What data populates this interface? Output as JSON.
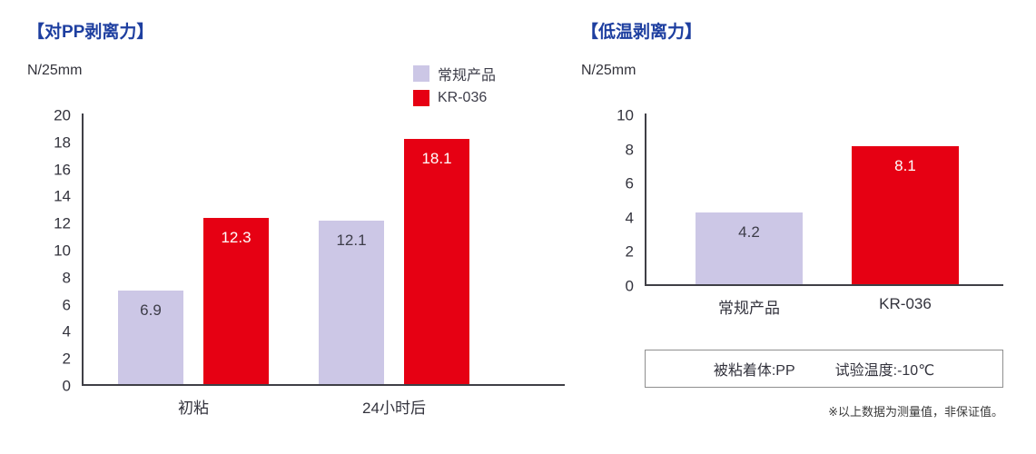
{
  "page": {
    "footnote": "※以上数据为测量值，非保证值。"
  },
  "colors": {
    "title_blue": "#1e3fa0",
    "regular_product_bar": "#ccc7e6",
    "kr036_bar": "#e60013",
    "axis": "#3f3f46"
  },
  "chart_data": [
    {
      "type": "bar",
      "title": "【对PP剥离力】",
      "ylabel": "N/25mm",
      "xlabel": "",
      "ylim": [
        0,
        20
      ],
      "yticks": [
        0,
        2,
        4,
        6,
        8,
        10,
        12,
        14,
        16,
        18,
        20
      ],
      "grid": false,
      "legend": true,
      "legend_position": "top-right",
      "categories": [
        "初粘",
        "24小时后"
      ],
      "series": [
        {
          "name": "常规产品",
          "color": "#ccc7e6",
          "label_color": "#3d3d49",
          "values": [
            6.9,
            12.1
          ]
        },
        {
          "name": "KR-036",
          "color": "#e60013",
          "label_color": "#ffffff",
          "values": [
            12.3,
            18.1
          ]
        }
      ]
    },
    {
      "type": "bar",
      "title": "【低温剥离力】",
      "ylabel": "N/25mm",
      "xlabel": "",
      "ylim": [
        0,
        10
      ],
      "yticks": [
        0,
        2,
        4,
        6,
        8,
        10
      ],
      "grid": false,
      "legend": false,
      "categories": [
        "常规产品",
        "KR-036"
      ],
      "series": [
        {
          "name": "常规产品",
          "color": "#ccc7e6",
          "label_color": "#3d3d49",
          "values": [
            4.2,
            null
          ]
        },
        {
          "name": "KR-036",
          "color": "#e60013",
          "label_color": "#ffffff",
          "values": [
            null,
            8.1
          ]
        }
      ],
      "info_box": [
        "被粘着体:PP",
        "试验温度:-10℃"
      ]
    }
  ]
}
